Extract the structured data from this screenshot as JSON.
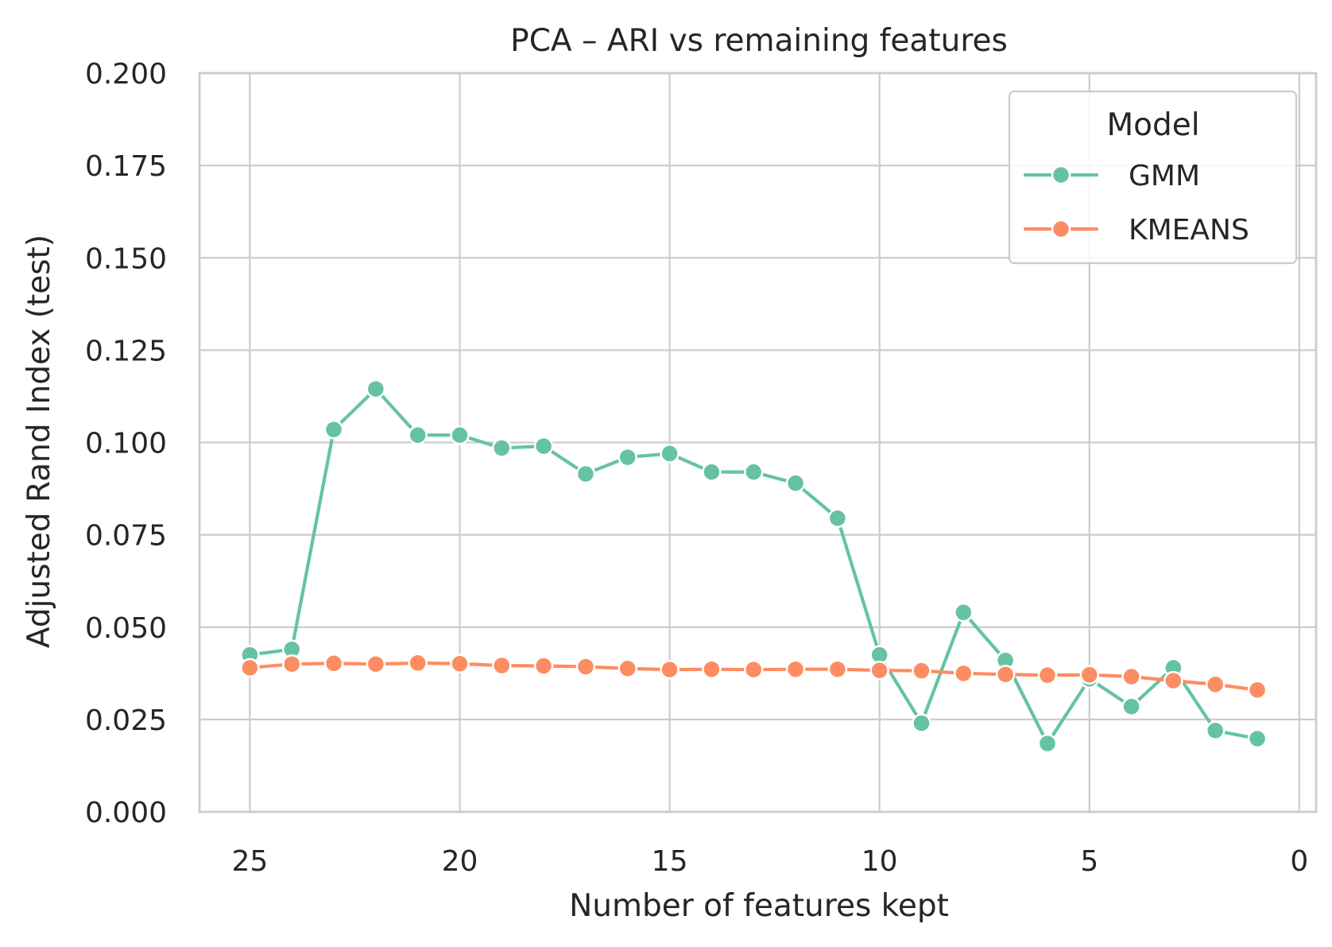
{
  "chart_data": {
    "type": "line",
    "title": "PCA – ARI vs remaining features",
    "xlabel": "Number of features kept",
    "ylabel": "Adjusted Rand Index (test)",
    "xlim": [
      26.2,
      -0.4
    ],
    "ylim": [
      0,
      0.2
    ],
    "x_reversed": true,
    "xticks": [
      25,
      20,
      15,
      10,
      5,
      0
    ],
    "yticks": [
      0.0,
      0.025,
      0.05,
      0.075,
      0.1,
      0.125,
      0.15,
      0.175,
      0.2
    ],
    "xtick_labels": [
      "25",
      "20",
      "15",
      "10",
      "5",
      "0"
    ],
    "ytick_labels": [
      "0.000",
      "0.025",
      "0.050",
      "0.075",
      "0.100",
      "0.125",
      "0.150",
      "0.175",
      "0.200"
    ],
    "grid": true,
    "legend": {
      "title": "Model",
      "placement": "top-right"
    },
    "x": [
      25,
      24,
      23,
      22,
      21,
      20,
      19,
      18,
      17,
      16,
      15,
      14,
      13,
      12,
      11,
      10,
      9,
      8,
      7,
      6,
      5,
      4,
      3,
      2,
      1
    ],
    "series": [
      {
        "name": "GMM",
        "color": "#66c2a5",
        "marker": "circle",
        "values": [
          0.0425,
          0.044,
          0.1035,
          0.1145,
          0.102,
          0.102,
          0.0985,
          0.099,
          0.0915,
          0.096,
          0.097,
          0.092,
          0.092,
          0.089,
          0.0795,
          0.0425,
          0.024,
          0.054,
          0.041,
          0.0185,
          0.036,
          0.0285,
          0.039,
          0.022,
          0.0198
        ]
      },
      {
        "name": "KMEANS",
        "color": "#fc8d62",
        "marker": "circle",
        "values": [
          0.039,
          0.04,
          0.0402,
          0.04,
          0.0403,
          0.0401,
          0.0396,
          0.0395,
          0.0393,
          0.0388,
          0.0385,
          0.0386,
          0.0385,
          0.0386,
          0.0386,
          0.0383,
          0.0382,
          0.0375,
          0.0372,
          0.037,
          0.0371,
          0.0366,
          0.0355,
          0.0345,
          0.033
        ]
      }
    ]
  }
}
